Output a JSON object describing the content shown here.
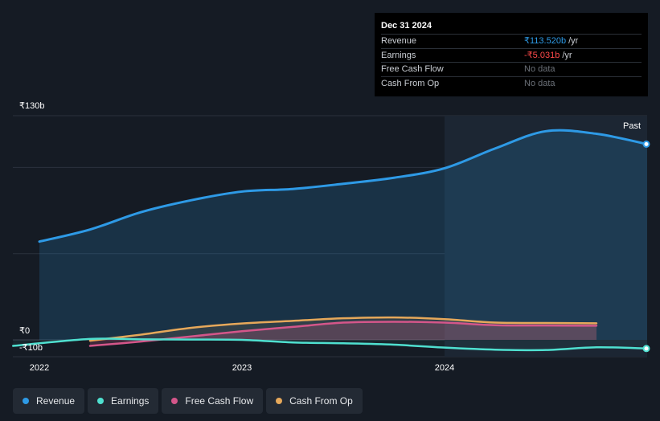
{
  "tooltip": {
    "date": "Dec 31 2024",
    "rows": [
      {
        "label": "Revenue",
        "value": "₹113.520b",
        "unit": "/yr",
        "color": "#2e9ae6"
      },
      {
        "label": "Earnings",
        "value": "-₹5.031b",
        "unit": "/yr",
        "color": "#ff4a4a"
      },
      {
        "label": "Free Cash Flow",
        "value": "No data",
        "unit": "",
        "color": "#6b7078"
      },
      {
        "label": "Cash From Op",
        "value": "No data",
        "unit": "",
        "color": "#6b7078"
      }
    ]
  },
  "past_label": "Past",
  "legend": [
    {
      "label": "Revenue",
      "color": "#2e9ae6"
    },
    {
      "label": "Earnings",
      "color": "#4fe0d0"
    },
    {
      "label": "Free Cash Flow",
      "color": "#d4568a"
    },
    {
      "label": "Cash From Op",
      "color": "#e6a85a"
    }
  ],
  "chart_data": {
    "type": "area",
    "ylim": [
      -10,
      130
    ],
    "y_tick_labels": [
      {
        "label": "₹130b",
        "value": 130
      },
      {
        "label": "₹0",
        "value": 0
      },
      {
        "label": "-₹10b",
        "value": -10
      }
    ],
    "x_tick_labels": [
      {
        "label": "2022",
        "value": 2022.0
      },
      {
        "label": "2023",
        "value": 2023.0
      },
      {
        "label": "2024",
        "value": 2024.0
      }
    ],
    "xlim": [
      2021.87,
      2025.0
    ],
    "highlight_start": 2024.0,
    "series": [
      {
        "name": "Revenue",
        "color": "#2e9ae6",
        "x": [
          2022.0,
          2022.25,
          2022.5,
          2022.75,
          2023.0,
          2023.25,
          2023.5,
          2023.75,
          2024.0,
          2024.25,
          2024.5,
          2024.75,
          2025.0
        ],
        "y": [
          57,
          64,
          74,
          81,
          86,
          87.5,
          90.5,
          94,
          99.5,
          111,
          121,
          119.5,
          113.5
        ]
      },
      {
        "name": "Earnings",
        "color": "#4fe0d0",
        "x": [
          2021.87,
          2022.25,
          2022.5,
          2022.75,
          2023.0,
          2023.25,
          2023.5,
          2023.75,
          2024.0,
          2024.25,
          2024.5,
          2024.75,
          2025.0
        ],
        "y": [
          -3.5,
          0.5,
          0.3,
          0.2,
          0,
          -1.5,
          -2,
          -2.8,
          -4.5,
          -5.7,
          -5.9,
          -4.3,
          -5.031
        ]
      },
      {
        "name": "Free Cash Flow",
        "color": "#d4568a",
        "x": [
          2022.25,
          2022.5,
          2022.75,
          2023.0,
          2023.25,
          2023.5,
          2023.75,
          2024.0,
          2024.25,
          2024.5,
          2024.75
        ],
        "y": [
          -3.5,
          -1,
          2,
          5,
          7.5,
          10,
          10.5,
          10,
          8.5,
          8.3,
          8.2
        ]
      },
      {
        "name": "Cash From Op",
        "color": "#e6a85a",
        "x": [
          2022.25,
          2022.5,
          2022.75,
          2023.0,
          2023.25,
          2023.5,
          2023.75,
          2024.0,
          2024.25,
          2024.5,
          2024.75
        ],
        "y": [
          -0.5,
          3,
          7,
          9.5,
          11,
          12.5,
          13,
          12,
          10,
          9.8,
          9.6
        ]
      }
    ]
  }
}
